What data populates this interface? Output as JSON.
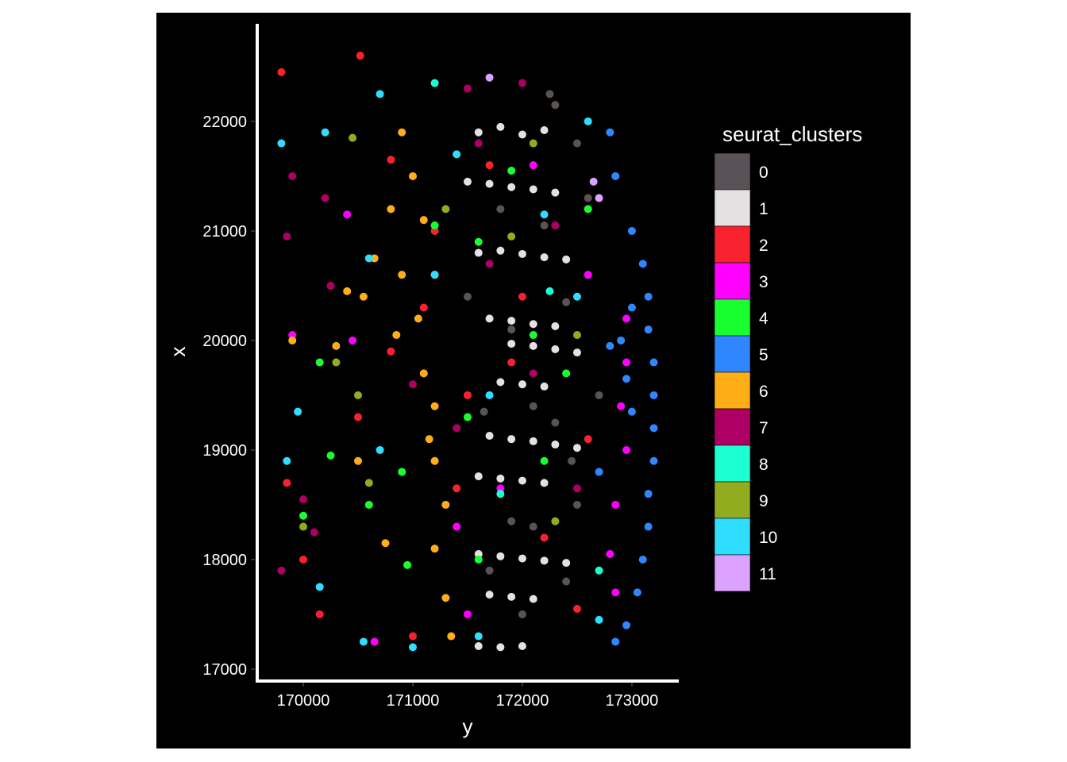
{
  "chart_data": {
    "type": "scatter",
    "xlabel": "y",
    "ylabel": "x",
    "xlim": [
      169565,
      173428
    ],
    "ylim": [
      16891,
      22891
    ],
    "xticks": [
      170000,
      171000,
      172000,
      173000
    ],
    "xtick_labels": [
      "170000",
      "171000",
      "172000",
      "173000"
    ],
    "yticks": [
      17000,
      18000,
      19000,
      20000,
      21000,
      22000
    ],
    "ytick_labels": [
      "17000",
      "18000",
      "19000",
      "20000",
      "21000",
      "22000"
    ],
    "grid": false,
    "background": "#000000",
    "legend": {
      "title": "seurat_clusters",
      "placement": "right",
      "entries": [
        {
          "label": "0",
          "color": "#5A5257"
        },
        {
          "label": "1",
          "color": "#E3E1E1"
        },
        {
          "label": "2",
          "color": "#F8222F"
        },
        {
          "label": "3",
          "color": "#FF00FF"
        },
        {
          "label": "4",
          "color": "#18FF30"
        },
        {
          "label": "5",
          "color": "#2F86FF"
        },
        {
          "label": "6",
          "color": "#FFAE17"
        },
        {
          "label": "7",
          "color": "#AE0064"
        },
        {
          "label": "8",
          "color": "#1BFFD2"
        },
        {
          "label": "9",
          "color": "#91AC1F"
        },
        {
          "label": "10",
          "color": "#2FDDFF"
        },
        {
          "label": "11",
          "color": "#DDA2FF"
        }
      ]
    },
    "series": [
      {
        "name": "0",
        "points": [
          [
            172300,
            22150
          ],
          [
            172500,
            21800
          ],
          [
            172200,
            21050
          ],
          [
            171900,
            20100
          ],
          [
            172400,
            20350
          ],
          [
            171650,
            19350
          ],
          [
            172100,
            19400
          ],
          [
            172300,
            19250
          ],
          [
            171900,
            18350
          ],
          [
            172100,
            18300
          ],
          [
            172500,
            18500
          ],
          [
            172000,
            17500
          ],
          [
            172400,
            17800
          ],
          [
            172600,
            21300
          ],
          [
            171500,
            20400
          ],
          [
            172700,
            19500
          ],
          [
            172250,
            22250
          ],
          [
            171800,
            21200
          ],
          [
            172450,
            18900
          ],
          [
            171700,
            17900
          ]
        ]
      },
      {
        "name": "1",
        "points": [
          [
            171600,
            21900
          ],
          [
            171800,
            21950
          ],
          [
            172000,
            21880
          ],
          [
            172200,
            21920
          ],
          [
            171500,
            21450
          ],
          [
            171700,
            21430
          ],
          [
            171900,
            21400
          ],
          [
            172100,
            21380
          ],
          [
            172300,
            21350
          ],
          [
            171600,
            20800
          ],
          [
            171800,
            20820
          ],
          [
            172000,
            20790
          ],
          [
            172200,
            20760
          ],
          [
            172400,
            20740
          ],
          [
            171700,
            20200
          ],
          [
            171900,
            20180
          ],
          [
            172100,
            20150
          ],
          [
            172300,
            20130
          ],
          [
            171900,
            19970
          ],
          [
            172100,
            19950
          ],
          [
            172300,
            19920
          ],
          [
            172500,
            19890
          ],
          [
            171800,
            19620
          ],
          [
            172000,
            19600
          ],
          [
            172200,
            19580
          ],
          [
            171700,
            19130
          ],
          [
            171900,
            19100
          ],
          [
            172100,
            19080
          ],
          [
            172300,
            19050
          ],
          [
            172500,
            19020
          ],
          [
            171600,
            18760
          ],
          [
            171800,
            18740
          ],
          [
            172000,
            18720
          ],
          [
            172200,
            18700
          ],
          [
            171600,
            18050
          ],
          [
            171800,
            18030
          ],
          [
            172000,
            18010
          ],
          [
            172200,
            17990
          ],
          [
            172400,
            17970
          ],
          [
            171700,
            17680
          ],
          [
            171900,
            17660
          ],
          [
            172100,
            17640
          ],
          [
            171600,
            17210
          ],
          [
            171800,
            17200
          ],
          [
            172000,
            17210
          ]
        ]
      },
      {
        "name": "2",
        "points": [
          [
            170800,
            21650
          ],
          [
            171200,
            21000
          ],
          [
            171100,
            20300
          ],
          [
            170800,
            19900
          ],
          [
            171500,
            19500
          ],
          [
            171900,
            19800
          ],
          [
            172200,
            18200
          ],
          [
            172500,
            17550
          ],
          [
            170000,
            18000
          ],
          [
            170150,
            17500
          ],
          [
            171000,
            17300
          ],
          [
            171700,
            21600
          ],
          [
            172000,
            20400
          ],
          [
            172600,
            19100
          ],
          [
            169850,
            18700
          ],
          [
            170520,
            22600
          ],
          [
            169800,
            22450
          ],
          [
            171400,
            18650
          ],
          [
            170500,
            19300
          ]
        ]
      },
      {
        "name": "3",
        "points": [
          [
            172950,
            20200
          ],
          [
            172950,
            19800
          ],
          [
            172900,
            19400
          ],
          [
            172950,
            19000
          ],
          [
            172850,
            18500
          ],
          [
            172800,
            18050
          ],
          [
            172850,
            17700
          ],
          [
            171400,
            18300
          ],
          [
            171800,
            18650
          ],
          [
            170450,
            20000
          ],
          [
            170400,
            21150
          ],
          [
            169900,
            20050
          ],
          [
            172600,
            20600
          ],
          [
            171500,
            17500
          ],
          [
            170650,
            17250
          ],
          [
            172100,
            21600
          ]
        ]
      },
      {
        "name": "4",
        "points": [
          [
            171200,
            21050
          ],
          [
            171600,
            20900
          ],
          [
            171900,
            21550
          ],
          [
            172400,
            19700
          ],
          [
            172200,
            18900
          ],
          [
            171600,
            18000
          ],
          [
            170000,
            18400
          ],
          [
            170250,
            18950
          ],
          [
            170600,
            18500
          ],
          [
            170900,
            18800
          ],
          [
            172600,
            21200
          ],
          [
            171500,
            19300
          ],
          [
            172100,
            20050
          ],
          [
            170950,
            17950
          ],
          [
            170150,
            19800
          ]
        ]
      },
      {
        "name": "5",
        "points": [
          [
            173100,
            20700
          ],
          [
            173150,
            20400
          ],
          [
            173150,
            20100
          ],
          [
            173200,
            19800
          ],
          [
            173200,
            19500
          ],
          [
            173200,
            19200
          ],
          [
            173200,
            18900
          ],
          [
            173150,
            18600
          ],
          [
            173150,
            18300
          ],
          [
            173100,
            18000
          ],
          [
            173050,
            17700
          ],
          [
            172950,
            17400
          ],
          [
            172850,
            17250
          ],
          [
            173000,
            19350
          ],
          [
            172950,
            19650
          ],
          [
            172900,
            20000
          ],
          [
            173000,
            20300
          ],
          [
            172800,
            21900
          ],
          [
            172850,
            21500
          ],
          [
            173000,
            21000
          ],
          [
            172700,
            18800
          ],
          [
            172800,
            19950
          ]
        ]
      },
      {
        "name": "6",
        "points": [
          [
            170900,
            21900
          ],
          [
            171000,
            21500
          ],
          [
            171100,
            21100
          ],
          [
            170800,
            21200
          ],
          [
            170650,
            20750
          ],
          [
            170900,
            20600
          ],
          [
            171050,
            20200
          ],
          [
            171100,
            19700
          ],
          [
            171200,
            19400
          ],
          [
            170850,
            20050
          ],
          [
            170550,
            20400
          ],
          [
            170400,
            20450
          ],
          [
            171200,
            18900
          ],
          [
            171300,
            18500
          ],
          [
            171200,
            18100
          ],
          [
            171300,
            17650
          ],
          [
            171350,
            17300
          ],
          [
            170500,
            18900
          ],
          [
            170300,
            19950
          ],
          [
            169900,
            20000
          ],
          [
            170750,
            18150
          ],
          [
            171150,
            19100
          ],
          [
            171200,
            20600
          ]
        ]
      },
      {
        "name": "7",
        "points": [
          [
            169900,
            21500
          ],
          [
            169850,
            20950
          ],
          [
            170200,
            21300
          ],
          [
            170250,
            20500
          ],
          [
            171500,
            22300
          ],
          [
            172000,
            22350
          ],
          [
            172300,
            21050
          ],
          [
            171700,
            20700
          ],
          [
            172100,
            19700
          ],
          [
            170000,
            18550
          ],
          [
            169800,
            17900
          ],
          [
            171000,
            19600
          ],
          [
            171400,
            19200
          ],
          [
            170100,
            18250
          ],
          [
            172500,
            18650
          ],
          [
            171600,
            21800
          ]
        ]
      },
      {
        "name": "8",
        "points": [
          [
            171200,
            22350
          ],
          [
            172250,
            20450
          ],
          [
            171800,
            18600
          ],
          [
            172700,
            17900
          ]
        ]
      },
      {
        "name": "9",
        "points": [
          [
            170450,
            21850
          ],
          [
            172100,
            21800
          ],
          [
            171300,
            21200
          ],
          [
            170500,
            19500
          ],
          [
            170300,
            19800
          ],
          [
            170600,
            18700
          ],
          [
            171900,
            20950
          ],
          [
            172500,
            20050
          ],
          [
            172300,
            18350
          ],
          [
            170000,
            18300
          ]
        ]
      },
      {
        "name": "10",
        "points": [
          [
            169800,
            21800
          ],
          [
            170200,
            21900
          ],
          [
            170700,
            22250
          ],
          [
            170600,
            20750
          ],
          [
            169950,
            19350
          ],
          [
            169850,
            18900
          ],
          [
            170150,
            17750
          ],
          [
            170550,
            17250
          ],
          [
            171000,
            17200
          ],
          [
            171400,
            21700
          ],
          [
            171700,
            19500
          ],
          [
            172200,
            21150
          ],
          [
            172500,
            20400
          ],
          [
            172700,
            17450
          ],
          [
            171200,
            20600
          ],
          [
            172600,
            22000
          ],
          [
            170700,
            19000
          ],
          [
            171600,
            17300
          ]
        ]
      },
      {
        "name": "11",
        "points": [
          [
            172650,
            21450
          ],
          [
            172700,
            21300
          ],
          [
            171700,
            22400
          ]
        ]
      }
    ]
  }
}
